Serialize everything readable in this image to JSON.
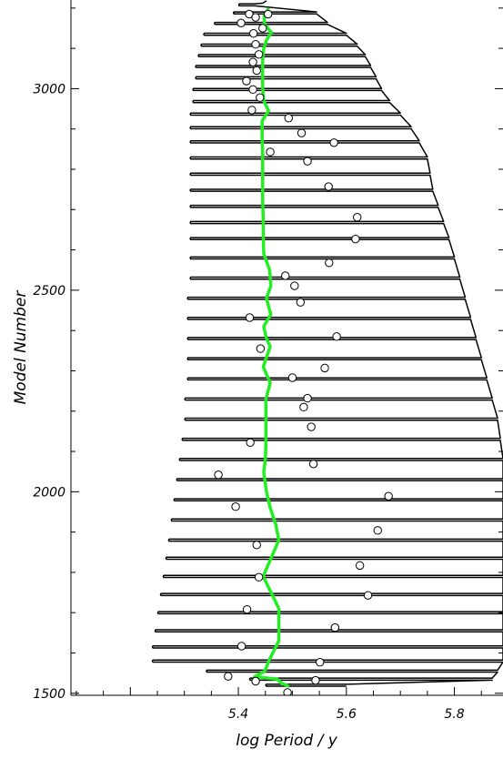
{
  "chart_data": {
    "type": "line",
    "title": "",
    "xlabel": "log Period / y",
    "ylabel": "Model Number",
    "xlim": [
      5.09,
      5.89
    ],
    "ylim": [
      1495,
      3220
    ],
    "x_ticks": [
      5.4,
      5.6,
      5.8
    ],
    "y_ticks": [
      1500,
      2000,
      2500,
      3000
    ],
    "grid": false,
    "colors": {
      "oscillation": "#000000",
      "mean_trend": "#22ee22",
      "marker_fill": "#ffffff",
      "marker_edge": "#000000"
    },
    "series": [
      {
        "style": "green-line",
        "points": [
          [
            5.456,
            3200
          ],
          [
            5.448,
            3180
          ],
          [
            5.448,
            3160
          ],
          [
            5.461,
            3140
          ],
          [
            5.452,
            3120
          ],
          [
            5.447,
            3100
          ],
          [
            5.445,
            3070
          ],
          [
            5.445,
            3030
          ],
          [
            5.445,
            3000
          ],
          [
            5.447,
            2970
          ],
          [
            5.456,
            2945
          ],
          [
            5.444,
            2920
          ],
          [
            5.444,
            2880
          ],
          [
            5.445,
            2840
          ],
          [
            5.445,
            2800
          ],
          [
            5.445,
            2760
          ],
          [
            5.445,
            2720
          ],
          [
            5.446,
            2680
          ],
          [
            5.446,
            2640
          ],
          [
            5.447,
            2590
          ],
          [
            5.458,
            2550
          ],
          [
            5.46,
            2510
          ],
          [
            5.452,
            2480
          ],
          [
            5.46,
            2440
          ],
          [
            5.447,
            2410
          ],
          [
            5.452,
            2380
          ],
          [
            5.459,
            2360
          ],
          [
            5.446,
            2310
          ],
          [
            5.459,
            2270
          ],
          [
            5.451,
            2230
          ],
          [
            5.451,
            2170
          ],
          [
            5.451,
            2120
          ],
          [
            5.45,
            2080
          ],
          [
            5.447,
            2050
          ],
          [
            5.452,
            2000
          ],
          [
            5.459,
            1960
          ],
          [
            5.469,
            1920
          ],
          [
            5.475,
            1880
          ],
          [
            5.446,
            1790
          ],
          [
            5.475,
            1710
          ],
          [
            5.475,
            1630
          ],
          [
            5.458,
            1585
          ],
          [
            5.449,
            1555
          ],
          [
            5.43,
            1541
          ],
          [
            5.472,
            1535
          ],
          [
            5.48,
            1525
          ],
          [
            5.494,
            1517
          ]
        ]
      },
      {
        "style": "black-oscillation",
        "centers": [
          3208,
          3188,
          3162,
          3135,
          3108,
          3082,
          3055,
          3027,
          2998,
          2968,
          2937,
          2903,
          2868,
          2828,
          2788,
          2748,
          2708,
          2668,
          2628,
          2580,
          2530,
          2480,
          2430,
          2380,
          2330,
          2280,
          2230,
          2180,
          2130,
          2080,
          2030,
          1980,
          1930,
          1880,
          1835,
          1790,
          1745,
          1700,
          1655,
          1615,
          1580,
          1555,
          1535,
          1520
        ],
        "left_extremes": [
          5.4,
          5.39,
          5.355,
          5.335,
          5.33,
          5.325,
          5.32,
          5.32,
          5.315,
          5.315,
          5.31,
          5.31,
          5.31,
          5.31,
          5.31,
          5.31,
          5.31,
          5.31,
          5.31,
          5.31,
          5.31,
          5.305,
          5.305,
          5.305,
          5.305,
          5.305,
          5.3,
          5.3,
          5.295,
          5.29,
          5.285,
          5.28,
          5.275,
          5.27,
          5.265,
          5.26,
          5.255,
          5.25,
          5.245,
          5.24,
          5.24,
          5.34,
          5.42,
          5.45
        ],
        "right_extremes": [
          5.43,
          5.545,
          5.565,
          5.6,
          5.62,
          5.635,
          5.645,
          5.655,
          5.665,
          5.68,
          5.7,
          5.72,
          5.735,
          5.75,
          5.755,
          5.76,
          5.77,
          5.78,
          5.79,
          5.8,
          5.81,
          5.82,
          5.83,
          5.84,
          5.85,
          5.86,
          5.87,
          5.88,
          5.885,
          5.89,
          5.89,
          5.89,
          5.89,
          5.89,
          5.89,
          5.89,
          5.89,
          5.89,
          5.89,
          5.89,
          5.89,
          5.88,
          5.87,
          5.6
        ]
      }
    ],
    "markers": [
      [
        5.42,
        3185
      ],
      [
        5.432,
        3177
      ],
      [
        5.455,
        3185
      ],
      [
        5.405,
        3163
      ],
      [
        5.445,
        3150
      ],
      [
        5.428,
        3137
      ],
      [
        5.432,
        3110
      ],
      [
        5.438,
        3085
      ],
      [
        5.427,
        3066
      ],
      [
        5.434,
        3045
      ],
      [
        5.415,
        3019
      ],
      [
        5.427,
        2998
      ],
      [
        5.44,
        2978
      ],
      [
        5.425,
        2947
      ],
      [
        5.493,
        2927
      ],
      [
        5.517,
        2890
      ],
      [
        5.577,
        2866
      ],
      [
        5.459,
        2843
      ],
      [
        5.528,
        2820
      ],
      [
        5.567,
        2757
      ],
      [
        5.62,
        2681
      ],
      [
        5.617,
        2627
      ],
      [
        5.568,
        2568
      ],
      [
        5.487,
        2536
      ],
      [
        5.504,
        2511
      ],
      [
        5.515,
        2470
      ],
      [
        5.421,
        2432
      ],
      [
        5.582,
        2385
      ],
      [
        5.441,
        2355
      ],
      [
        5.56,
        2307
      ],
      [
        5.5,
        2283
      ],
      [
        5.528,
        2232
      ],
      [
        5.521,
        2210
      ],
      [
        5.535,
        2161
      ],
      [
        5.422,
        2122
      ],
      [
        5.539,
        2069
      ],
      [
        5.363,
        2042
      ],
      [
        5.678,
        1989
      ],
      [
        5.395,
        1963
      ],
      [
        5.658,
        1904
      ],
      [
        5.434,
        1868
      ],
      [
        5.625,
        1817
      ],
      [
        5.438,
        1788
      ],
      [
        5.64,
        1743
      ],
      [
        5.416,
        1708
      ],
      [
        5.579,
        1663
      ],
      [
        5.406,
        1617
      ],
      [
        5.551,
        1577
      ],
      [
        5.381,
        1542
      ],
      [
        5.543,
        1532
      ],
      [
        5.432,
        1530
      ],
      [
        5.491,
        1502
      ]
    ]
  }
}
